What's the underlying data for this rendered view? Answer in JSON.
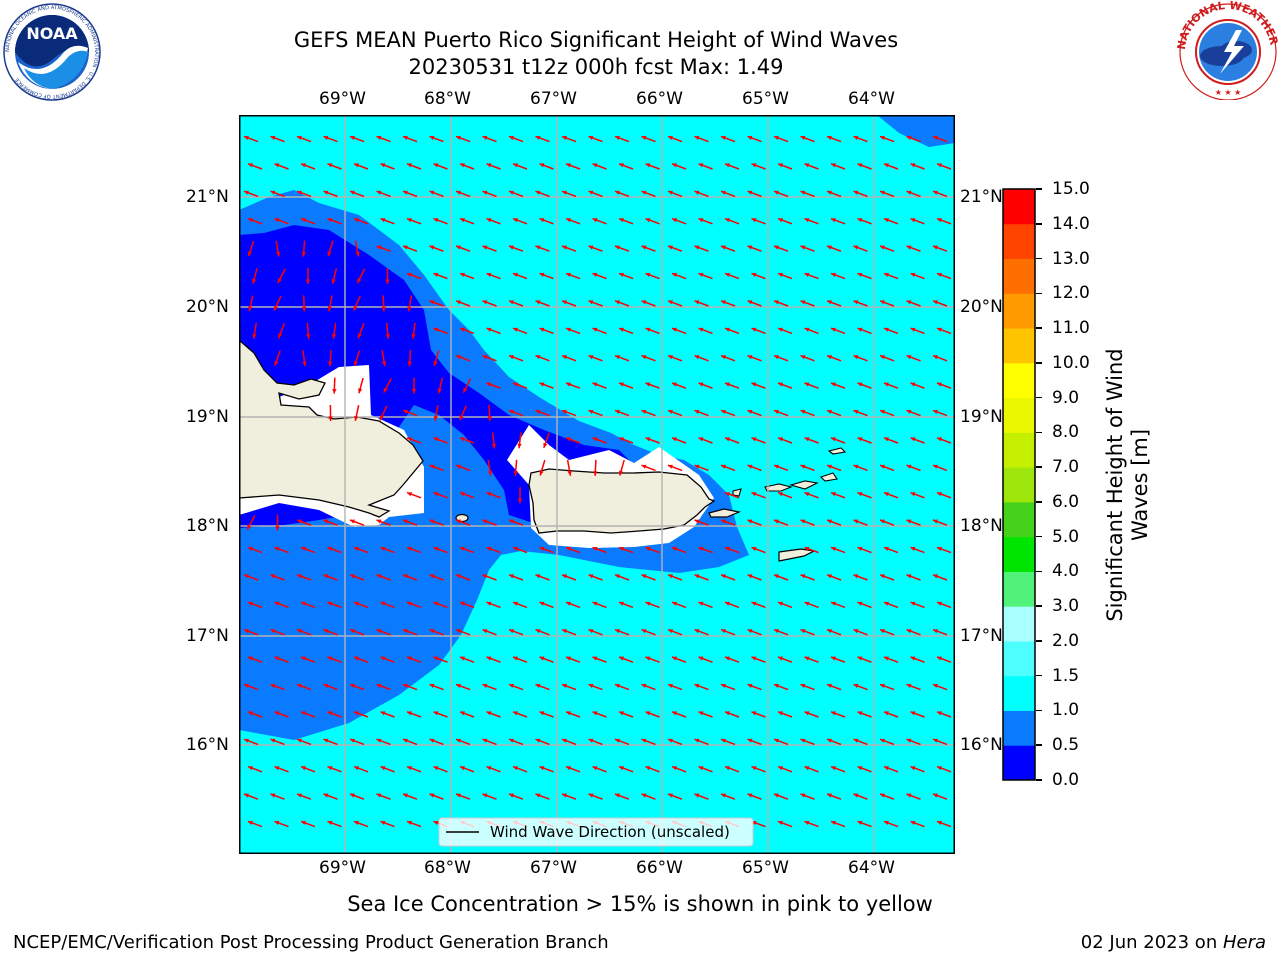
{
  "header": {
    "title_line1": "GEFS MEAN Puerto Rico Significant Height of Wind Waves",
    "title_line2": "20230531 t12z 000h fcst   Max: 1.49"
  },
  "logos": {
    "left": {
      "text": "NOAA",
      "ring_text": "NATIONAL OCEANIC AND ATMOSPHERIC ADMINISTRATION · U.S. DEPARTMENT OF COMMERCE"
    },
    "right": {
      "ring_text": "NATIONAL WEATHER SERVICE"
    }
  },
  "map": {
    "lon_labels": [
      "69°W",
      "68°W",
      "67°W",
      "66°W",
      "65°W",
      "64°W"
    ],
    "lat_labels": [
      "21°N",
      "20°N",
      "19°N",
      "18°N",
      "17°N",
      "16°N"
    ],
    "legend_label": "Wind Wave Direction (unscaled)",
    "colors": {
      "ocean_low": "#0000ff",
      "ocean_mid": "#0a7aff",
      "ocean_high": "#00ffff",
      "land": "#f0eedc",
      "arrow": "#ff0000",
      "grid": "#b4b4b4"
    }
  },
  "colorbar": {
    "label_line1": "Significant Height of Wind",
    "label_line2": "Waves [m]",
    "ticks": [
      "0.0",
      "0.5",
      "1.0",
      "1.5",
      "2.0",
      "3.0",
      "4.0",
      "5.0",
      "6.0",
      "7.0",
      "8.0",
      "9.0",
      "10.0",
      "11.0",
      "12.0",
      "13.0",
      "14.0",
      "15.0"
    ],
    "colors": [
      "#0000ff",
      "#0a7aff",
      "#00ffff",
      "#4dffff",
      "#aaffff",
      "#50f27a",
      "#00e500",
      "#44d31a",
      "#9ee60b",
      "#c4f000",
      "#ebf700",
      "#ffff00",
      "#ffc400",
      "#ff9b00",
      "#ff6f00",
      "#ff4400",
      "#ff0000"
    ]
  },
  "notes": {
    "sea_ice": "Sea Ice Concentration > 15% is shown in pink to yellow"
  },
  "footer": {
    "left": "NCEP/EMC/Verification Post Processing Product Generation Branch",
    "right_prefix": "02 Jun 2023 on ",
    "right_host": "Hera"
  }
}
